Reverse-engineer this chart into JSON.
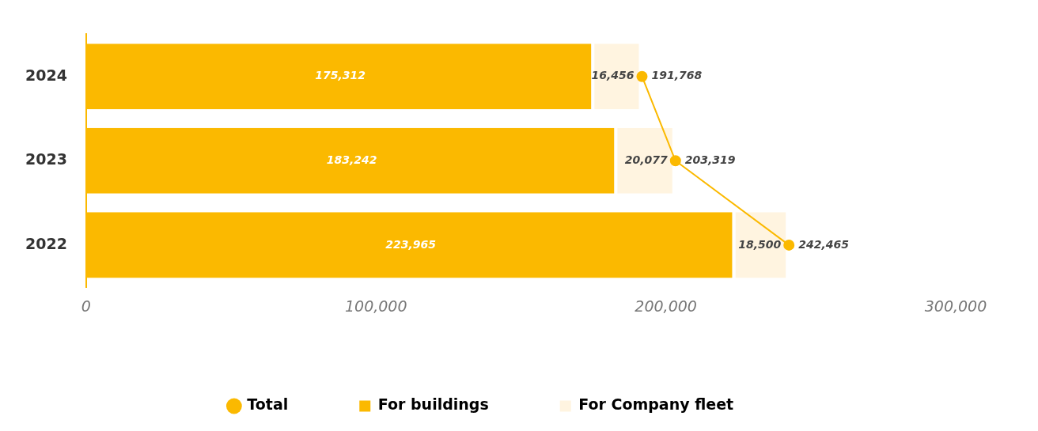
{
  "chart_data": {
    "type": "bar",
    "orientation": "horizontal",
    "stacked": true,
    "categories": [
      "2024",
      "2023",
      "2022"
    ],
    "series": [
      {
        "name": "Total",
        "type": "line",
        "color": "#fbb900",
        "values": [
          191768,
          203319,
          242465
        ],
        "value_labels": [
          "191,768",
          "203,319",
          "242,465"
        ]
      },
      {
        "name": "For buildings",
        "color": "#fbb900",
        "values": [
          175312,
          183242,
          223965
        ],
        "value_labels": [
          "175,312",
          "183,242",
          "223,965"
        ]
      },
      {
        "name": "For Company fleet",
        "color": "#fff4e0",
        "values": [
          16456,
          20077,
          18500
        ],
        "value_labels": [
          "16,456",
          "20,077",
          "18,500"
        ]
      }
    ],
    "xlim": [
      0,
      300000
    ],
    "xticks": [
      {
        "value": 0,
        "label": "0"
      },
      {
        "value": 100000,
        "label": "100,000"
      },
      {
        "value": 200000,
        "label": "200,000"
      },
      {
        "value": 300000,
        "label": "300,000"
      }
    ],
    "grid": false,
    "legend": "bottom",
    "marker": "circle",
    "line_style": "solid"
  }
}
